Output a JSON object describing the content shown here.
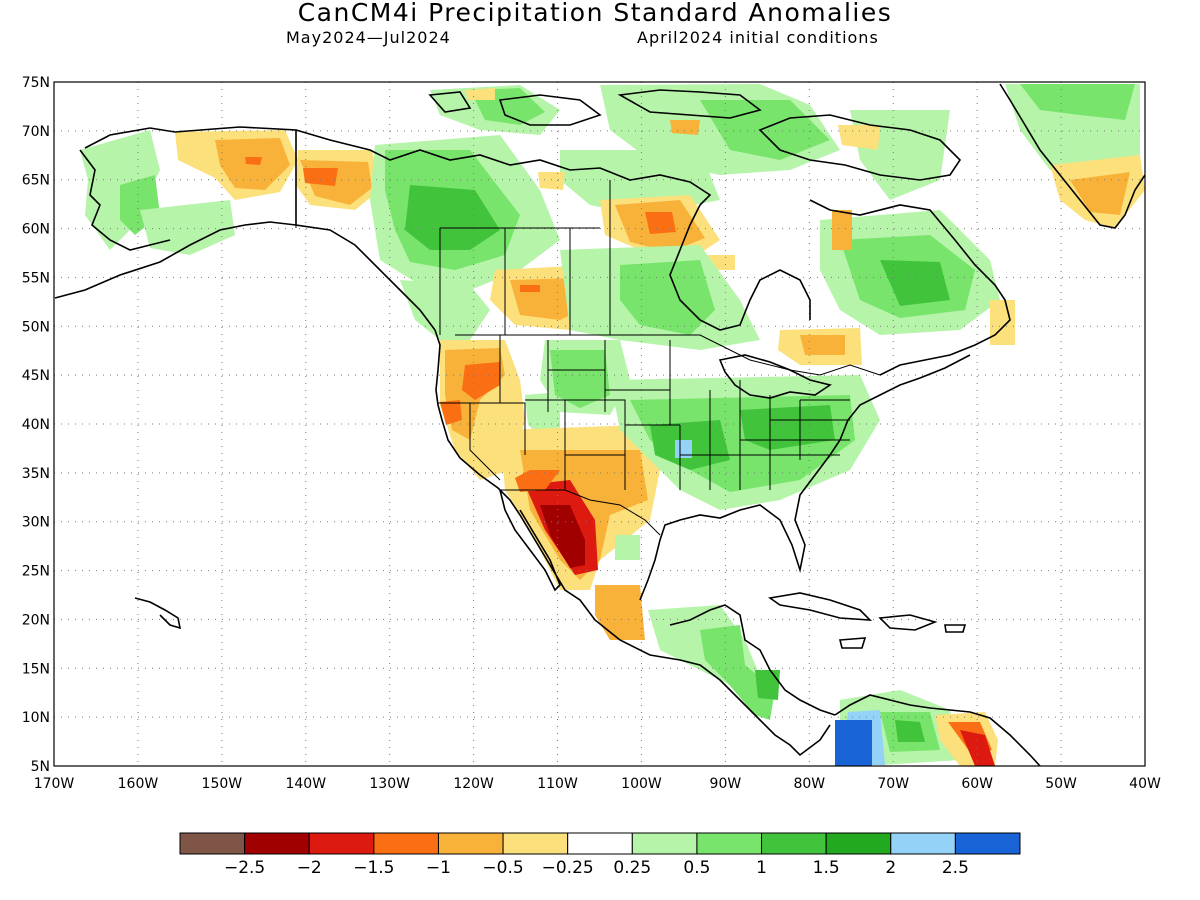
{
  "header": {
    "title": "CanCM4i Precipitation Standard Anomalies",
    "period": "May2024—Jul2024",
    "initial_conditions": "April2024 initial conditions"
  },
  "map": {
    "lat_labels": [
      "75N",
      "70N",
      "65N",
      "60N",
      "55N",
      "50N",
      "45N",
      "40N",
      "35N",
      "30N",
      "25N",
      "20N",
      "15N",
      "10N",
      "5N"
    ],
    "lon_labels": [
      "170W",
      "160W",
      "150W",
      "140W",
      "130W",
      "120W",
      "110W",
      "100W",
      "90W",
      "80W",
      "70W",
      "60W",
      "50W",
      "40W"
    ],
    "lat_range": [
      5,
      75
    ],
    "lon_range": [
      -170,
      -40
    ],
    "grid": "dotted"
  },
  "colorbar": {
    "colors": [
      "#7f5548",
      "#a10000",
      "#dc1a10",
      "#fa6e14",
      "#f8b23a",
      "#fbe07b",
      "#ffffff",
      "#b5f4a9",
      "#78e46c",
      "#41c43c",
      "#22a91f",
      "#95d2f8",
      "#1864d7"
    ],
    "labels": [
      "−2.5",
      "−2",
      "−1.5",
      "−1",
      "−0.5",
      "−0.25",
      "0.25",
      "0.5",
      "1",
      "1.5",
      "2",
      "2.5"
    ]
  },
  "anomaly_colors": {
    "very_dry": "#a10000",
    "dry_strong": "#dc1a10",
    "dry": "#fa6e14",
    "dry_moderate": "#f8b23a",
    "dry_light": "#fbe07b",
    "wet_light": "#b5f4a9",
    "wet": "#78e46c",
    "wet_moderate": "#41c43c",
    "wet_strong": "#22a91f",
    "very_wet": "#95d2f8",
    "extreme_wet": "#1864d7"
  }
}
